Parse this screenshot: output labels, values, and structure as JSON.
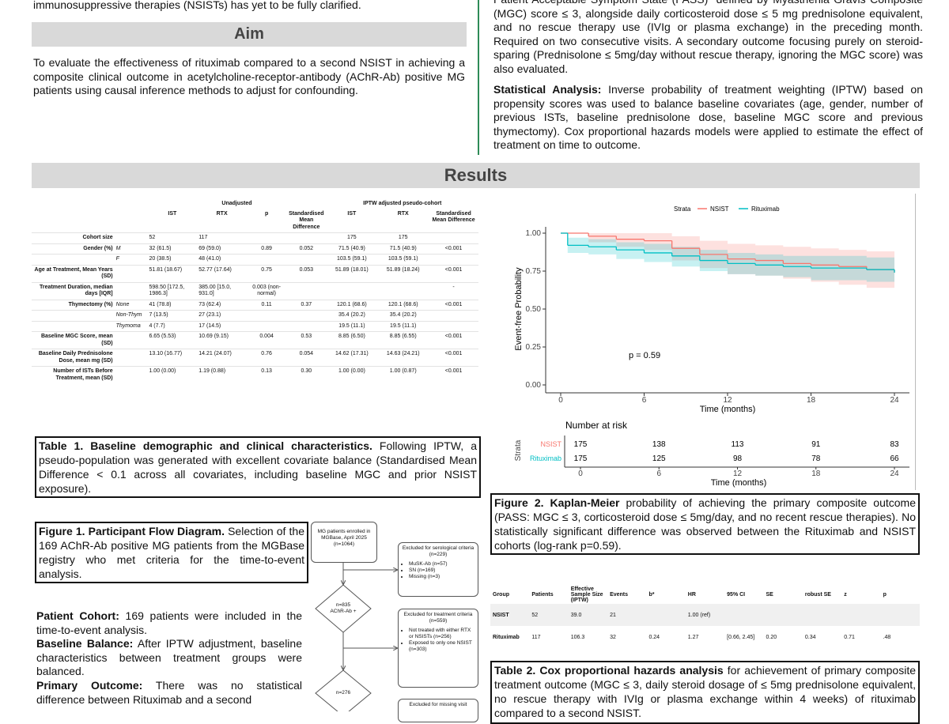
{
  "intro": {
    "text": "immunosuppressive therapies (NSISTs) has yet to be fully clarified."
  },
  "aim": {
    "heading": "Aim",
    "text": "To evaluate the effectiveness of rituximab compared to a second NSIST in achieving a composite clinical outcome in acetylcholine-receptor-antibody (AChR-Ab) positive MG patients using causal inference methods to adjust for confounding."
  },
  "methods": {
    "outcome": "Patient Acceptable Symptom State (PASS)\" defined by Myasthenia Gravis Composite (MGC) score ≤ 3, alongside daily corticosteroid dose ≤ 5 mg prednisolone equivalent, and no rescue therapy use (IVIg or plasma exchange) in the preceding month. Required on two consecutive visits. A secondary outcome focusing purely on steroid-sparing (Prednisolone ≤ 5mg/day without rescue therapy, ignoring the MGC score) was also evaluated.",
    "stat_lead": "Statistical Analysis:",
    "stat_text": "Inverse probability of treatment weighting (IPTW) based on propensity scores was used to balance baseline covariates (age, gender, number of previous ISTs, baseline prednisolone dose, baseline MGC score and previous thymectomy). Cox proportional hazards models were applied to estimate the effect of treatment on time to outcome."
  },
  "results": {
    "heading": "Results"
  },
  "table1": {
    "group_headers": [
      "Unadjusted",
      "IPTW adjusted pseudo-cohort"
    ],
    "columns": [
      "IST",
      "RTX",
      "p",
      "Standardised Mean Difference",
      "IST",
      "RTX",
      "Standardised Mean Difference"
    ],
    "rows": [
      [
        "Cohort size",
        null,
        "52",
        "117",
        null,
        null,
        "175",
        "175",
        null
      ],
      [
        "Gender (%)",
        "M",
        "32 (61.5)",
        "69 (59.0)",
        "0.89",
        "0.052",
        "71.5 (40.9)",
        "71.5 (40.9)",
        "<0.001"
      ],
      [
        null,
        "F",
        "20 (38.5)",
        "48 (41.0)",
        null,
        null,
        "103.5 (59.1)",
        "103.5 (59.1)",
        null
      ],
      [
        "Age at Treatment, Mean Years (SD)",
        null,
        "51.81 (18.67)",
        "52.77 (17.64)",
        "0.75",
        "0.053",
        "51.89 (18.01)",
        "51.89 (18.24)",
        "<0.001"
      ],
      [
        "Treatment Duration, median days [IQR]",
        null,
        "598.50 [172.5, 1986.3]",
        "385.00 [15.0, 931.0]",
        "0.003 (non-normal)",
        null,
        null,
        null,
        "-"
      ],
      [
        "Thymectomy (%)",
        "None",
        "41 (78.8)",
        "73 (62.4)",
        "0.11",
        "0.37",
        "120.1 (68.6)",
        "120.1 (68.6)",
        "<0.001"
      ],
      [
        null,
        "Non-Thym",
        "7 (13.5)",
        "27 (23.1)",
        null,
        null,
        "35.4 (20.2)",
        "35.4 (20.2)",
        null
      ],
      [
        null,
        "Thymoma",
        "4 (7.7)",
        "17 (14.5)",
        null,
        null,
        "19.5 (11.1)",
        "19.5 (11.1)",
        null
      ],
      [
        "Baseline MGC Score, mean (SD)",
        null,
        "6.65 (5.53)",
        "10.69 (9.15)",
        "0.004",
        "0.53",
        "8.85 (6.50)",
        "8.85 (6.55)",
        "<0.001"
      ],
      [
        "Baseline Daily Prednisolone Dose, mean mg (SD)",
        null,
        "13.10 (16.77)",
        "14.21 (24.07)",
        "0.76",
        "0.054",
        "14.62 (17.31)",
        "14.63 (24.21)",
        "<0.001"
      ],
      [
        "Number of ISTs Before Treatment, mean (SD)",
        null,
        "1.00 (0.00)",
        "1.19 (0.88)",
        "0.13",
        "0.30",
        "1.00 (0.00)",
        "1.00 (0.87)",
        "<0.001"
      ]
    ],
    "caption_lead": "Table 1. Baseline demographic and clinical characteristics.",
    "caption_text": "Following IPTW, a pseudo-population was generated with excellent covariate balance (Standardised Mean Difference < 0.1 across all covariates, including baseline MGC and prior NSIST exposure)."
  },
  "chart_data": {
    "type": "line",
    "legend_title": "Strata",
    "x_label": "Time (months)",
    "y_label": "Event-free Probability",
    "annotation": "p = 0.59",
    "xlim": [
      0,
      24
    ],
    "ylim": [
      0,
      1
    ],
    "xticks": [
      0,
      6,
      12,
      18,
      24
    ],
    "yticks": [
      {
        "value": 0,
        "label": "0.00"
      },
      {
        "value": 0.25,
        "label": "0.25"
      },
      {
        "value": 0.5,
        "label": "0.50"
      },
      {
        "value": 0.75,
        "label": "0.75"
      },
      {
        "value": 1,
        "label": "1.00"
      }
    ],
    "series": [
      {
        "name": "NSIST",
        "color": "#F8766D",
        "x": [
          0,
          2,
          4,
          6,
          8,
          10,
          12,
          14,
          16,
          18,
          20,
          22,
          24
        ],
        "values": [
          1,
          0.98,
          0.96,
          0.95,
          0.9,
          0.86,
          0.83,
          0.82,
          0.8,
          0.79,
          0.78,
          0.76,
          0.74
        ],
        "upper": [
          1,
          1,
          1,
          1,
          0.98,
          0.95,
          0.93,
          0.92,
          0.91,
          0.9,
          0.89,
          0.88,
          0.87
        ],
        "lower": [
          1,
          0.94,
          0.91,
          0.89,
          0.82,
          0.77,
          0.73,
          0.72,
          0.7,
          0.68,
          0.66,
          0.64,
          0.61
        ]
      },
      {
        "name": "Rituximab",
        "color": "#00BFC4",
        "x": [
          0,
          0.5,
          2,
          4,
          6,
          8,
          10,
          12,
          14,
          16,
          18,
          20,
          22,
          24
        ],
        "values": [
          1,
          0.92,
          0.91,
          0.89,
          0.87,
          0.85,
          0.82,
          0.8,
          0.79,
          0.78,
          0.77,
          0.77,
          0.76,
          0.74
        ],
        "upper": [
          1,
          0.97,
          0.96,
          0.94,
          0.93,
          0.91,
          0.89,
          0.87,
          0.86,
          0.85,
          0.85,
          0.85,
          0.84,
          0.83
        ],
        "lower": [
          1,
          0.87,
          0.86,
          0.83,
          0.81,
          0.78,
          0.75,
          0.73,
          0.72,
          0.71,
          0.69,
          0.69,
          0.68,
          0.65
        ]
      }
    ],
    "risk_table": {
      "title": "Number at risk",
      "y_label": "Strata",
      "x_label": "Time (months)",
      "xticks": [
        0,
        6,
        12,
        18,
        24
      ],
      "rows": [
        [
          175,
          138,
          113,
          91,
          83
        ],
        [
          175,
          125,
          98,
          78,
          66
        ]
      ]
    }
  },
  "figure2": {
    "caption_lead": "Figure 2. Kaplan-Meier",
    "caption_text": "probability of achieving the primary composite outcome (PASS: MGC ≤ 3, corticosteroid dose ≤ 5mg/day, and no recent rescue therapies). No statistically significant difference was observed between the Rituximab and NSIST cohorts (log-rank p=0.59)."
  },
  "figure1": {
    "caption_lead": "Figure 1. Participant Flow Diagram.",
    "caption_text": "Selection of the 169 AChR-Ab positive MG patients from the MGBase registry who met criteria for the time-to-event analysis.",
    "enrolled": "MG patients enrolled in MGBase, April 2025 (n=1064)",
    "node1": [
      "n=835",
      "AChR-Ab +"
    ],
    "node2": "n=276",
    "excluded1": {
      "title": "Excluded for serological criteria (n=229)",
      "items": [
        "MuSK-Ab (n=57)",
        "SN (n=169)",
        "Missing (n=3)"
      ]
    },
    "excluded2": {
      "title": "Excluded for treatment criteria (n=559)",
      "items": [
        "Not treated with either RTX or NSISTs (n=256)",
        "Exposed to only one NSIST (n=303)"
      ]
    },
    "excluded3": {
      "title": "Excluded for missing visit"
    }
  },
  "summary": [
    {
      "lead": "Patient Cohort:",
      "text": "169 patients were included in the time-to-event analysis."
    },
    {
      "lead": "Baseline Balance:",
      "text": "After IPTW adjustment, baseline characteristics between treatment groups were balanced."
    },
    {
      "lead": "Primary Outcome:",
      "text": "There was no statistical difference between Rituximab and a second"
    }
  ],
  "table2": {
    "columns": [
      "Group",
      "Patients",
      "Effective Sample Size (IPTW)",
      "Events",
      "b*",
      "HR",
      "95% CI",
      "SE",
      "robust SE",
      "z",
      "p"
    ],
    "rows": [
      [
        "NSIST",
        "52",
        "39.0",
        "21",
        null,
        "1.00 (ref)",
        null,
        null,
        null,
        null,
        null
      ],
      [
        "Rituximab",
        "117",
        "106.3",
        "32",
        "0.24",
        "1.27",
        "[0.66, 2.45]",
        "0.20",
        "0.34",
        "0.71",
        ".48"
      ]
    ],
    "caption_lead": "Table 2. Cox proportional hazards analysis",
    "caption_text": "for achievement of primary composite treatment outcome (MGC ≤ 3, daily steroid dosage of ≤ 5mg prednisolone equivalent, no rescue therapy with IVIg or plasma exchange within 4 weeks) of rituximab compared to a second NSIST."
  }
}
